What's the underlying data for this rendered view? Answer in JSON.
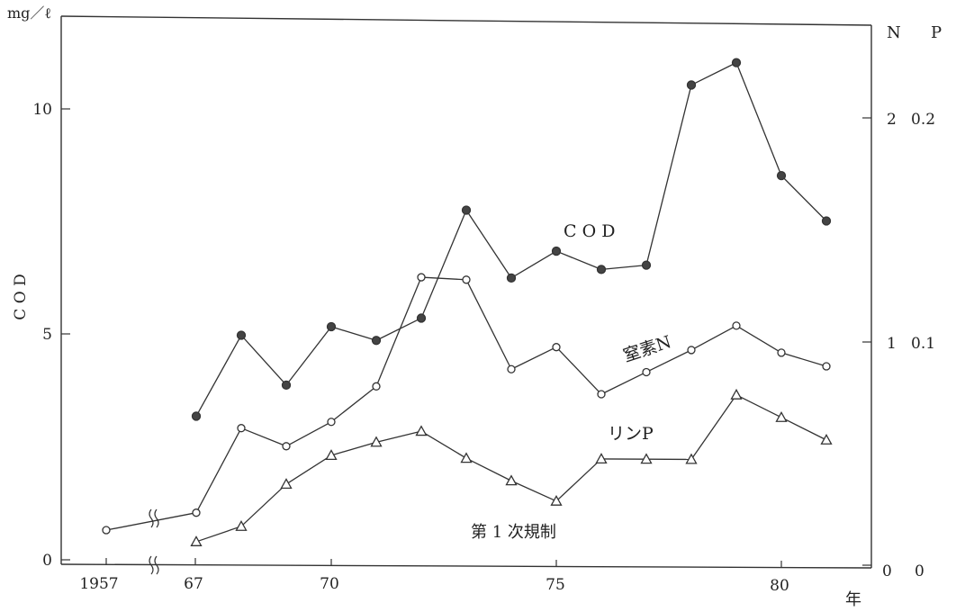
{
  "chart_data": {
    "type": "line",
    "title": "",
    "ylabel_left": "C O D",
    "unit_left": "mg／ℓ",
    "ylabel_right_n": "N",
    "ylabel_right_p": "P",
    "xlabel": "年",
    "x_ticks": [
      "1957",
      "67",
      "70",
      "75",
      "80"
    ],
    "y_left_ticks": [
      "0",
      "5",
      "10"
    ],
    "y_right_n_ticks": [
      "0",
      "1",
      "2"
    ],
    "y_right_p_ticks": [
      "0",
      "0.1",
      "0.2"
    ],
    "ylim_left": [
      0,
      12
    ],
    "ylim_right_n": [
      0,
      2.4
    ],
    "ylim_right_p": [
      0,
      0.24
    ],
    "axis_break": "between 1957 and 1967",
    "series": [
      {
        "name": "C O D",
        "axis": "left",
        "marker": "filled-circle",
        "x": [
          1967,
          1968,
          1969,
          1970,
          1971,
          1972,
          1973,
          1974,
          1975,
          1976,
          1977,
          1978,
          1979,
          1980,
          1981
        ],
        "values": [
          3.2,
          5.0,
          3.9,
          5.2,
          4.9,
          5.4,
          7.8,
          6.3,
          6.9,
          6.5,
          6.6,
          10.6,
          11.1,
          8.6,
          7.6
        ]
      },
      {
        "name": "窒素N",
        "axis": "right_n",
        "marker": "open-circle",
        "x": [
          1957,
          1967,
          1968,
          1969,
          1970,
          1971,
          1972,
          1973,
          1974,
          1975,
          1976,
          1977,
          1978,
          1979,
          1980,
          1981
        ],
        "values": [
          0.14,
          0.22,
          0.6,
          0.52,
          0.63,
          0.79,
          1.28,
          1.27,
          0.87,
          0.97,
          0.76,
          0.86,
          0.96,
          1.07,
          0.95,
          0.89
        ]
      },
      {
        "name": "リンP",
        "axis": "right_p",
        "marker": "open-triangle",
        "x": [
          1967,
          1968,
          1969,
          1970,
          1971,
          1972,
          1973,
          1974,
          1975,
          1976,
          1977,
          1978,
          1979,
          1980,
          1981
        ],
        "values": [
          0.009,
          0.016,
          0.035,
          0.048,
          0.054,
          0.059,
          0.047,
          0.037,
          0.028,
          0.047,
          0.047,
          0.047,
          0.076,
          0.066,
          0.056
        ]
      }
    ],
    "annotations": {
      "first_regulation": "第 1 次規制"
    },
    "grid": false,
    "legend": "inline labels"
  }
}
